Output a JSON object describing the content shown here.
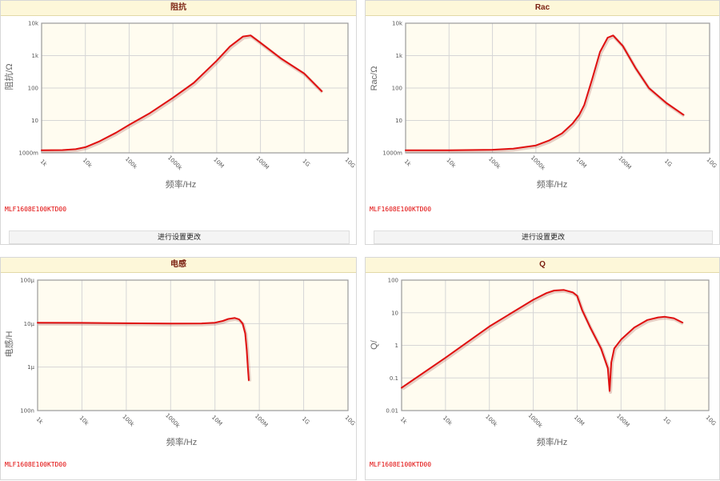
{
  "button_label": "进行设置更改",
  "colors": {
    "plot_bg": "#fffcf0",
    "grid": "#d6d6d6",
    "curve": "#e01010",
    "title": "#7a1f10"
  },
  "x_tick_labels": [
    "1k",
    "10k",
    "100k",
    "1000k",
    "10M",
    "100M",
    "1G",
    "10G"
  ],
  "chart_data": [
    {
      "id": "impedance",
      "type": "line",
      "title": "阻抗",
      "part_number": "MLF1608E100KTD00",
      "xlabel": "频率/Hz",
      "ylabel": "阻抗/Ω",
      "x_scale": "log",
      "y_scale": "log",
      "xlim": [
        1000,
        10000000000
      ],
      "ylim": [
        1,
        10000
      ],
      "y_tick_values": [
        1,
        10,
        100,
        1000,
        10000
      ],
      "y_tick_labels": [
        "1000m",
        "10",
        "100",
        "1k",
        "10k"
      ],
      "grid": true,
      "series": [
        {
          "color": "#e01010",
          "x": [
            1000,
            3000,
            6000,
            10000,
            20000,
            50000,
            100000,
            300000,
            1000000,
            3000000,
            10000000,
            20000000,
            40000000,
            60000000,
            100000000,
            300000000,
            1000000000,
            2500000000
          ],
          "y": [
            1.2,
            1.22,
            1.3,
            1.5,
            2.2,
            4.2,
            7.3,
            17,
            50,
            145,
            700,
            1900,
            3900,
            4200,
            2500,
            800,
            280,
            80
          ]
        }
      ]
    },
    {
      "id": "rac",
      "type": "line",
      "title": "Rac",
      "part_number": "MLF1608E100KTD00",
      "xlabel": "频率/Hz",
      "ylabel": "Rac/Ω",
      "x_scale": "log",
      "y_scale": "log",
      "xlim": [
        1000,
        10000000000
      ],
      "ylim": [
        1,
        10000
      ],
      "y_tick_values": [
        1,
        10,
        100,
        1000,
        10000
      ],
      "y_tick_labels": [
        "1000m",
        "10",
        "100",
        "1k",
        "10k"
      ],
      "grid": true,
      "series": [
        {
          "color": "#e01010",
          "x": [
            1000,
            10000,
            100000,
            300000,
            1000000,
            2000000,
            4000000,
            7000000,
            10000000,
            13000000,
            20000000,
            30000000,
            45000000,
            60000000,
            100000000,
            200000000,
            400000000,
            1000000000,
            2500000000
          ],
          "y": [
            1.2,
            1.2,
            1.25,
            1.35,
            1.7,
            2.4,
            4,
            8,
            15,
            30,
            200,
            1300,
            3600,
            4200,
            2000,
            400,
            100,
            35,
            15
          ]
        }
      ]
    },
    {
      "id": "inductance",
      "type": "line",
      "title": "电感",
      "part_number": "MLF1608E100KTD00",
      "xlabel": "频率/Hz",
      "ylabel": "电感/H",
      "x_scale": "log",
      "y_scale": "log",
      "xlim": [
        1000,
        10000000000
      ],
      "ylim": [
        1e-07,
        0.0001
      ],
      "y_tick_values": [
        1e-07,
        1e-06,
        1e-05,
        0.0001
      ],
      "y_tick_labels": [
        "100n",
        "1µ",
        "10µ",
        "100µ"
      ],
      "grid": true,
      "series": [
        {
          "color": "#e01010",
          "x": [
            1000,
            10000,
            100000,
            1000000,
            5000000,
            10000000,
            15000000,
            20000000,
            28000000,
            35000000,
            42000000,
            48000000,
            52000000,
            55000000,
            58000000
          ],
          "y": [
            1.05e-05,
            1.04e-05,
            1.02e-05,
            1e-05,
            1.01e-05,
            1.05e-05,
            1.15e-05,
            1.28e-05,
            1.35e-05,
            1.25e-05,
            1e-05,
            6e-06,
            2.5e-06,
            1e-06,
            5e-07
          ]
        }
      ]
    },
    {
      "id": "q",
      "type": "line",
      "title": "Q",
      "part_number": "MLF1608E100KTD00",
      "xlabel": "频率/Hz",
      "ylabel": "Q/",
      "x_scale": "log",
      "y_scale": "log",
      "xlim": [
        1000,
        10000000000
      ],
      "ylim": [
        0.01,
        100
      ],
      "y_tick_values": [
        0.01,
        0.1,
        1,
        10,
        100
      ],
      "y_tick_labels": [
        "0.01",
        "0.1",
        "1",
        "10",
        "100"
      ],
      "grid": true,
      "series": [
        {
          "color": "#e01010",
          "x": [
            1000,
            10000,
            100000,
            1000000,
            2000000,
            3000000,
            5000000,
            8000000,
            10000000,
            13000000,
            20000000,
            35000000,
            50000000,
            55000000,
            60000000,
            70000000,
            100000000,
            200000000,
            400000000,
            700000000,
            1000000000,
            1600000000,
            2500000000
          ],
          "y": [
            0.05,
            0.42,
            3.8,
            25,
            40,
            48,
            50,
            42,
            33,
            12,
            3.5,
            0.8,
            0.2,
            0.04,
            0.3,
            0.8,
            1.5,
            3.5,
            6,
            7.2,
            7.5,
            6.8,
            5
          ]
        }
      ]
    }
  ]
}
